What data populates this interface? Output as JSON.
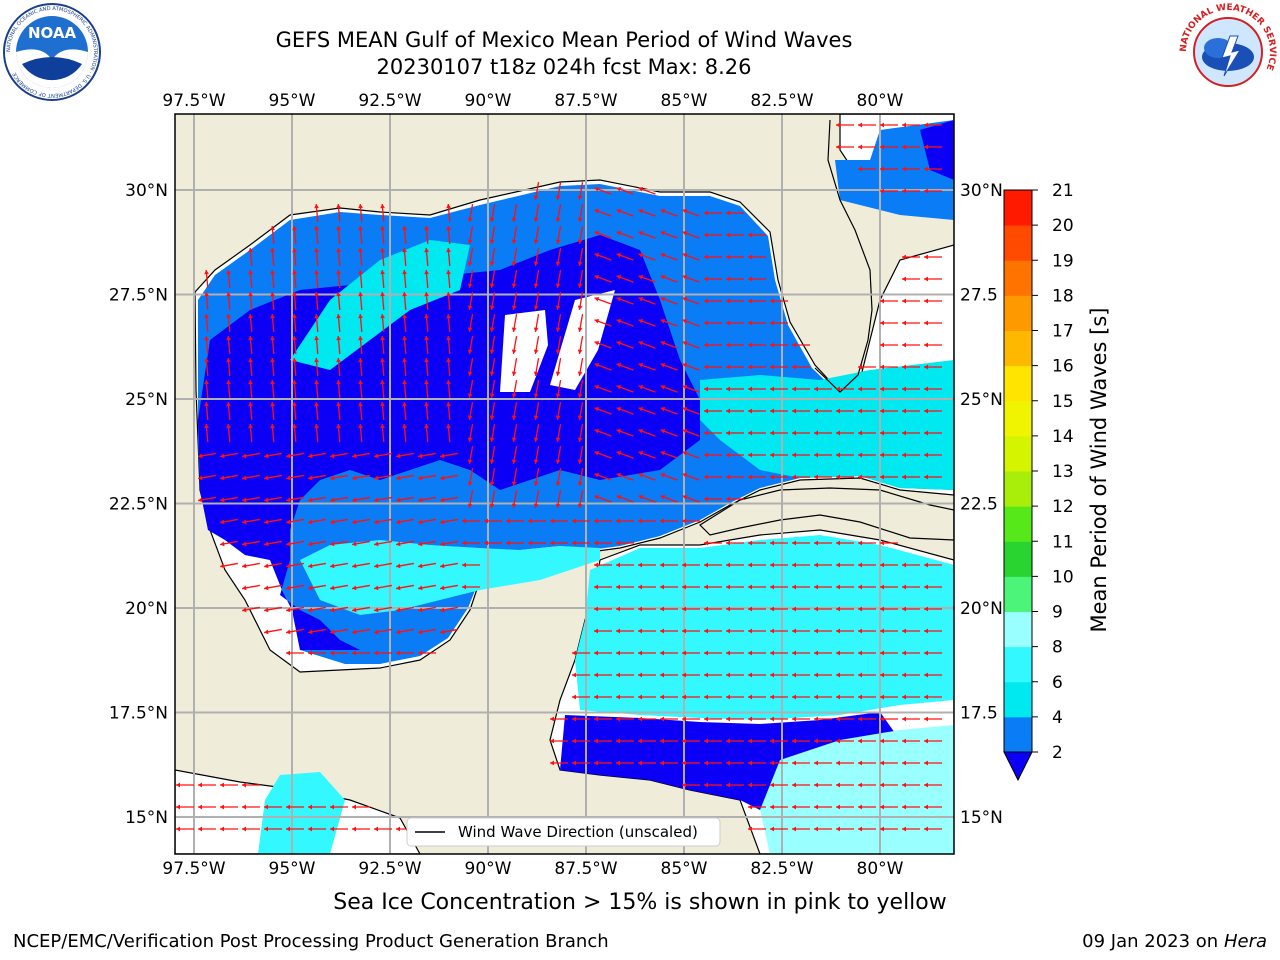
{
  "header": {
    "title_line1": "GEFS MEAN Gulf of Mexico Mean Period of Wind Waves",
    "title_line2": "20230107 t18z 024h fcst   Max: 8.26"
  },
  "logos": {
    "noaa_text": "NOAA",
    "noaa_ring": "NATIONAL OCEANIC AND ATMOSPHERIC ADMINISTRATION · U.S. DEPARTMENT OF COMMERCE",
    "nws_ring": "NATIONAL WEATHER SERVICE"
  },
  "map": {
    "lon_ticks": [
      "97.5°W",
      "95°W",
      "92.5°W",
      "90°W",
      "87.5°W",
      "85°W",
      "82.5°W",
      "80°W"
    ],
    "lat_ticks_left": [
      "30°N",
      "27.5°N",
      "25°N",
      "22.5°N",
      "20°N",
      "17.5°N",
      "15°N"
    ],
    "lat_ticks_right": [
      "30°N",
      "27.5",
      "25°N",
      "22.5",
      "20°N",
      "17.5",
      "15°N"
    ],
    "legend_label": "Wind Wave Direction (unscaled)"
  },
  "colorbar": {
    "label": "Mean Period of Wind Waves [s]",
    "ticks": [
      "2",
      "4",
      "6",
      "8",
      "9",
      "10",
      "11",
      "12",
      "13",
      "14",
      "15",
      "16",
      "17",
      "18",
      "19",
      "20",
      "21"
    ],
    "colors": [
      "#0a7cf5",
      "#00e8f0",
      "#33f8ff",
      "#99ffff",
      "#4cf47a",
      "#2ad430",
      "#57e81a",
      "#a8ee0a",
      "#d4f400",
      "#f0f400",
      "#ffe400",
      "#ffb800",
      "#ff9900",
      "#ff7300",
      "#ff4a00",
      "#ff1a00"
    ],
    "extend_color": "#0b00f5"
  },
  "footer": {
    "subtitle": "Sea Ice Concentration > 15% is shown in pink to yellow",
    "credit": "NCEP/EMC/Verification Post Processing Product Generation Branch",
    "date": "09 Jan 2023 on",
    "host": "Hera"
  }
}
